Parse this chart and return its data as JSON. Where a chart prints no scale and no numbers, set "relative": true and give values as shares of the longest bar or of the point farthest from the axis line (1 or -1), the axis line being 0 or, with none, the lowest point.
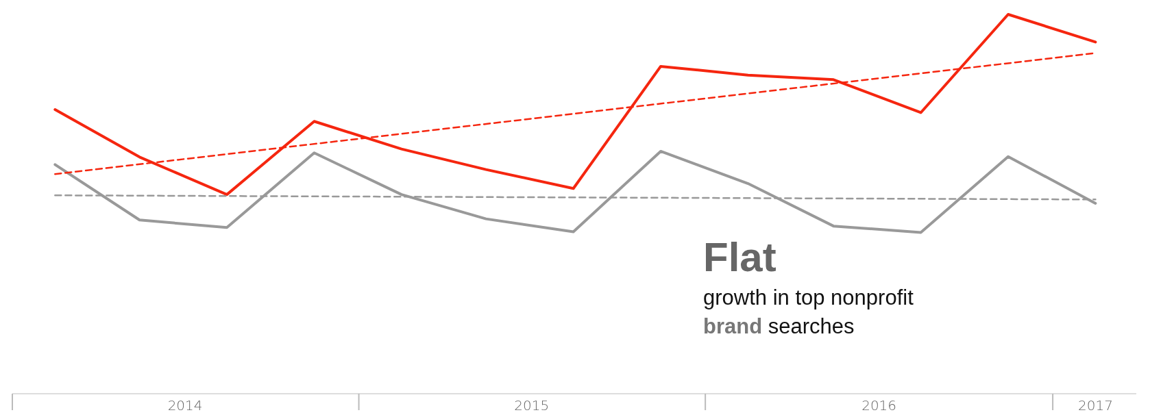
{
  "chart_data": {
    "type": "line",
    "relative": true,
    "marker": "none",
    "x": [
      "2014-02-15",
      "2014-05-15",
      "2014-08-15",
      "2014-11-15",
      "2015-02-15",
      "2015-05-15",
      "2015-08-15",
      "2015-11-15",
      "2016-02-15",
      "2016-05-15",
      "2016-08-15",
      "2016-11-15",
      "2017-02-15"
    ],
    "xlim": [
      "2014-01-01",
      "2017-03-30"
    ],
    "xticks": [
      {
        "value": "2014-07-02",
        "label": "2014"
      },
      {
        "value": "2015-07-02",
        "label": "2015"
      },
      {
        "value": "2016-07-02",
        "label": "2016"
      },
      {
        "value": "2017-02-15",
        "label": "2017"
      }
    ],
    "series": [
      {
        "color": "#f5260f",
        "line_style": "solid",
        "values": [
          0.749,
          0.624,
          0.525,
          0.718,
          0.645,
          0.591,
          0.541,
          0.863,
          0.84,
          0.828,
          0.741,
          1.0,
          0.927
        ]
      },
      {
        "color": "#999999",
        "line_style": "solid",
        "values": [
          0.604,
          0.458,
          0.438,
          0.635,
          0.525,
          0.461,
          0.427,
          0.639,
          0.554,
          0.442,
          0.425,
          0.625,
          0.502
        ]
      },
      {
        "type": "line",
        "color": "#f5260f",
        "line_style": "dashed",
        "x": [
          "2014-02-15",
          "2017-02-15"
        ],
        "values": [
          0.579,
          0.898
        ]
      },
      {
        "type": "line",
        "color": "#999999",
        "line_style": "dashed",
        "x": [
          "2014-02-15",
          "2017-02-15"
        ],
        "values": [
          0.523,
          0.512
        ]
      }
    ],
    "annotations": [
      "Flat",
      "growth in top nonprofit",
      "brand searches"
    ]
  }
}
